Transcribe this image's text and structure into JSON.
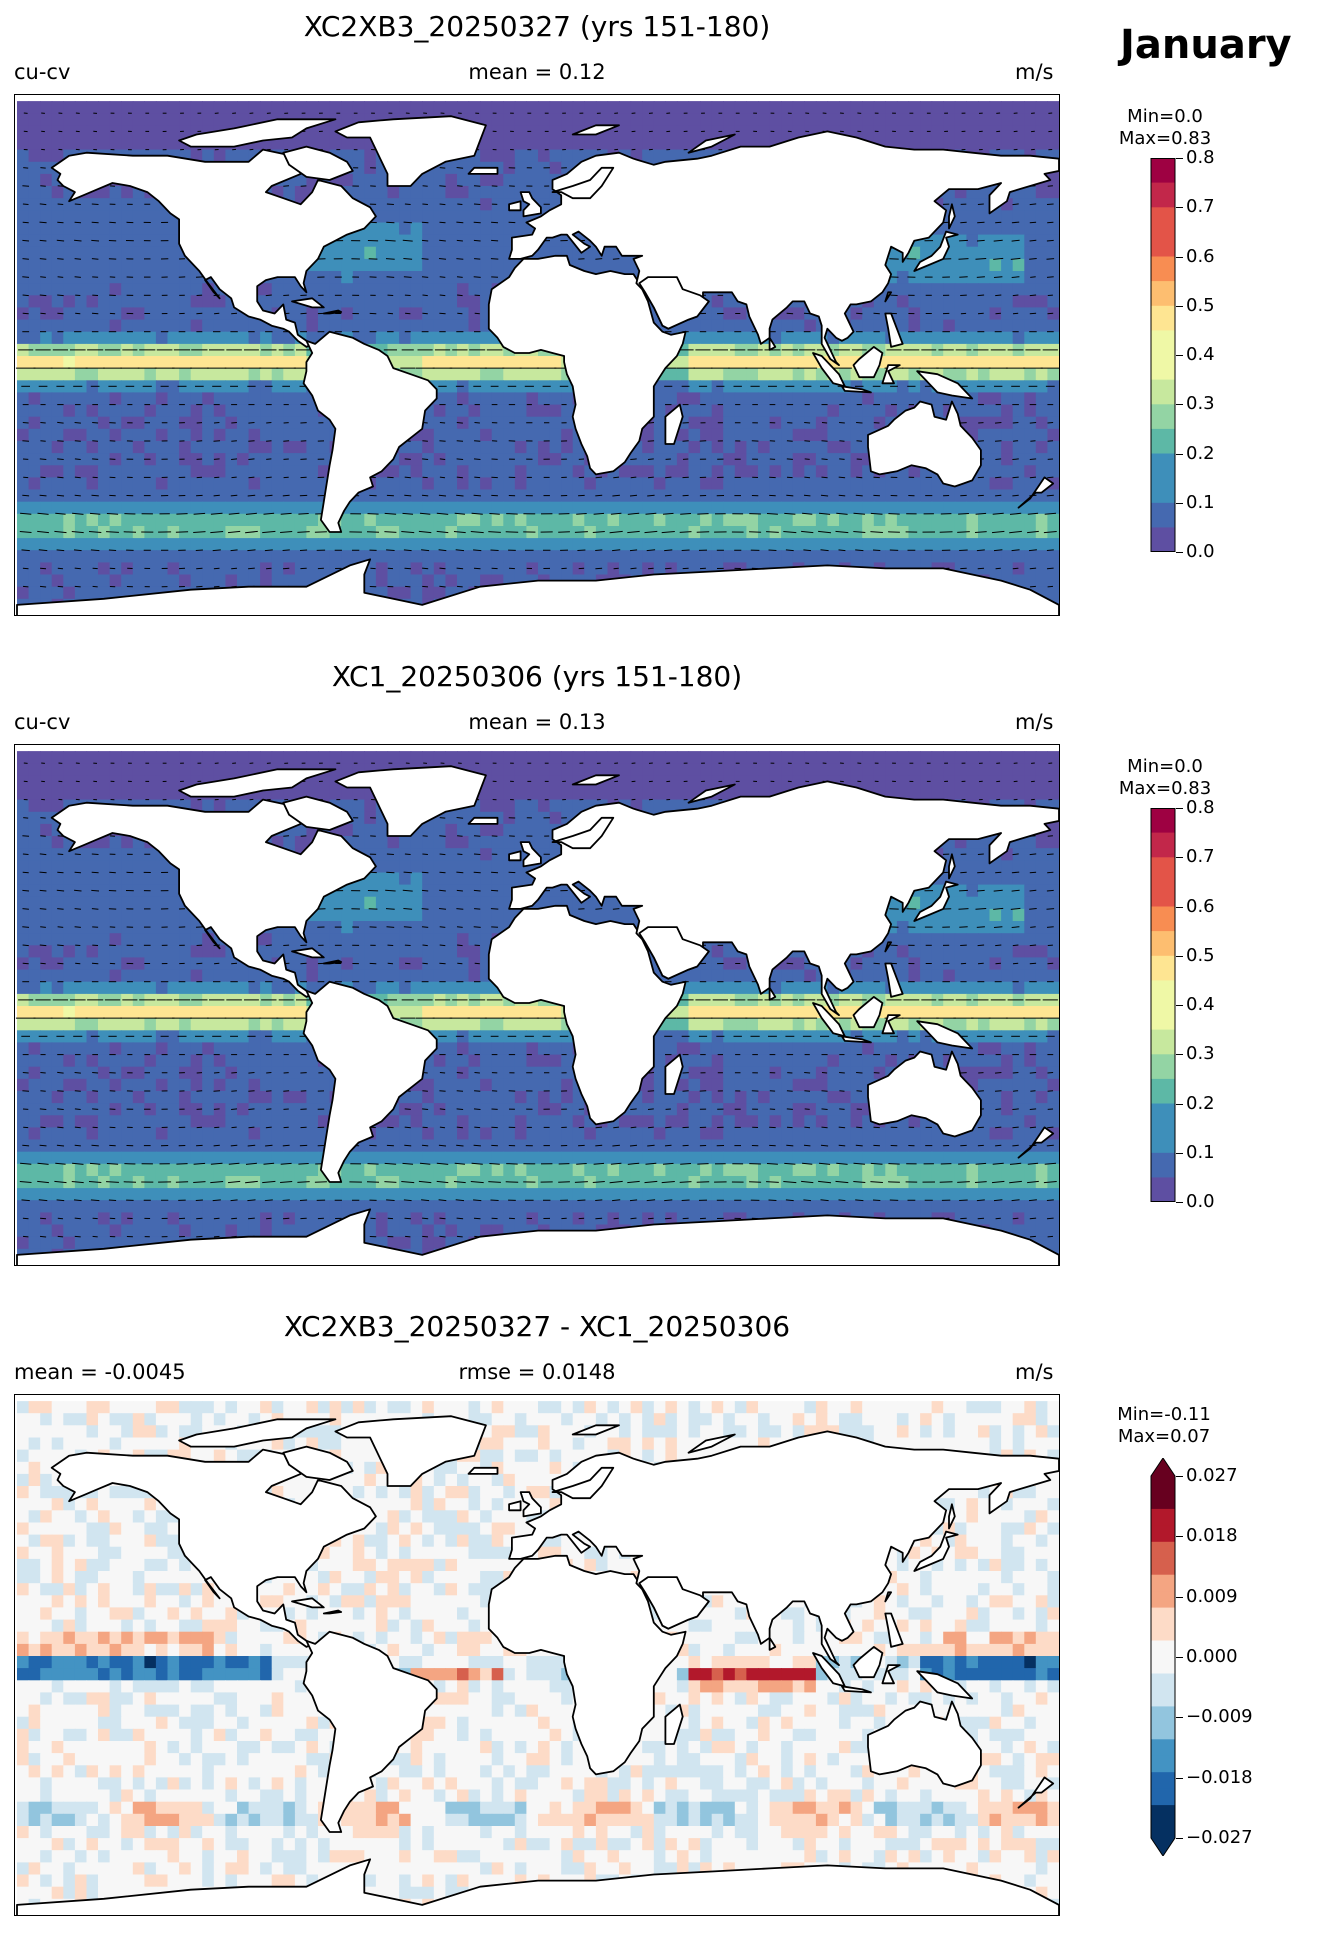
{
  "month_title": "January",
  "panels": [
    {
      "title": "XC2XB3_20250327 (yrs 151-180)",
      "left_label": "cu-cv",
      "center_label": "mean = 0.12",
      "units": "m/s",
      "cb_min": "Min=0.0",
      "cb_max": "Max=0.83",
      "cb_ticks": [
        "0.8",
        "0.7",
        "0.6",
        "0.5",
        "0.4",
        "0.3",
        "0.2",
        "0.1",
        "0.0"
      ]
    },
    {
      "title": "XC1_20250306 (yrs 151-180)",
      "left_label": "cu-cv",
      "center_label": "mean = 0.13",
      "units": "m/s",
      "cb_min": "Min=0.0",
      "cb_max": "Max=0.83",
      "cb_ticks": [
        "0.8",
        "0.7",
        "0.6",
        "0.5",
        "0.4",
        "0.3",
        "0.2",
        "0.1",
        "0.0"
      ]
    },
    {
      "title": "XC2XB3_20250327 - XC1_20250306",
      "left_label": "mean = -0.0045",
      "center_label": "rmse = 0.0148",
      "units": "m/s",
      "cb_min": "Min=-0.11",
      "cb_max": "Max=0.07",
      "cb_ticks": [
        "0.027",
        "0.018",
        "0.009",
        "0.000",
        "−0.009",
        "−0.018",
        "−0.027"
      ]
    }
  ],
  "colors": {
    "speed_scale": [
      "#5e4fa2",
      "#4569b0",
      "#3e8fba",
      "#5db8a6",
      "#93d4a4",
      "#c7e89e",
      "#eff8a6",
      "#fee592",
      "#fdbe70",
      "#f88d52",
      "#e35448",
      "#c2274a",
      "#9e0142"
    ],
    "diff_scale": [
      "#053061",
      "#2166ac",
      "#4393c3",
      "#92c5de",
      "#d1e5f0",
      "#f7f7f7",
      "#fddbc7",
      "#f4a582",
      "#d6604d",
      "#b2182b",
      "#67001f"
    ],
    "land": "#ffffff",
    "coast": "#000000"
  }
}
